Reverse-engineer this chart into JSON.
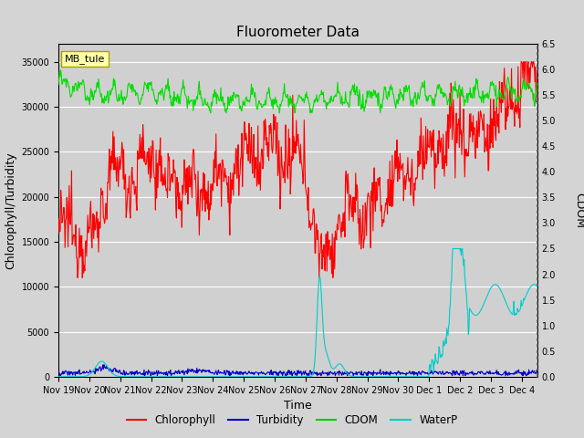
{
  "title": "Fluorometer Data",
  "xlabel": "Time",
  "ylabel_left": "Chlorophyll/Turbidity",
  "ylabel_right": "CDOM",
  "annotation": "MB_tule",
  "ylim_left": [
    0,
    37000
  ],
  "ylim_right": [
    0.0,
    6.5
  ],
  "yticks_left": [
    0,
    5000,
    10000,
    15000,
    20000,
    25000,
    30000,
    35000
  ],
  "yticks_right": [
    0.0,
    0.5,
    1.0,
    1.5,
    2.0,
    2.5,
    3.0,
    3.5,
    4.0,
    4.5,
    5.0,
    5.5,
    6.0,
    6.5
  ],
  "xtick_labels": [
    "Nov 19",
    "Nov 20",
    "Nov 21",
    "Nov 22",
    "Nov 23",
    "Nov 24",
    "Nov 25",
    "Nov 26",
    "Nov 27",
    "Nov 28",
    "Nov 29",
    "Nov 30",
    "Dec 1",
    "Dec 2",
    "Dec 3",
    "Dec 4"
  ],
  "legend_entries": [
    "Chlorophyll",
    "Turbidity",
    "CDOM",
    "WaterP"
  ],
  "legend_colors": [
    "#ff0000",
    "#0000cc",
    "#00cc00",
    "#00cccc"
  ],
  "fig_bg": "#d4d4d4",
  "plot_bg": "#d0d0d0",
  "grid_color": "#ffffff",
  "title_fontsize": 11,
  "tick_fontsize": 7,
  "label_fontsize": 9
}
